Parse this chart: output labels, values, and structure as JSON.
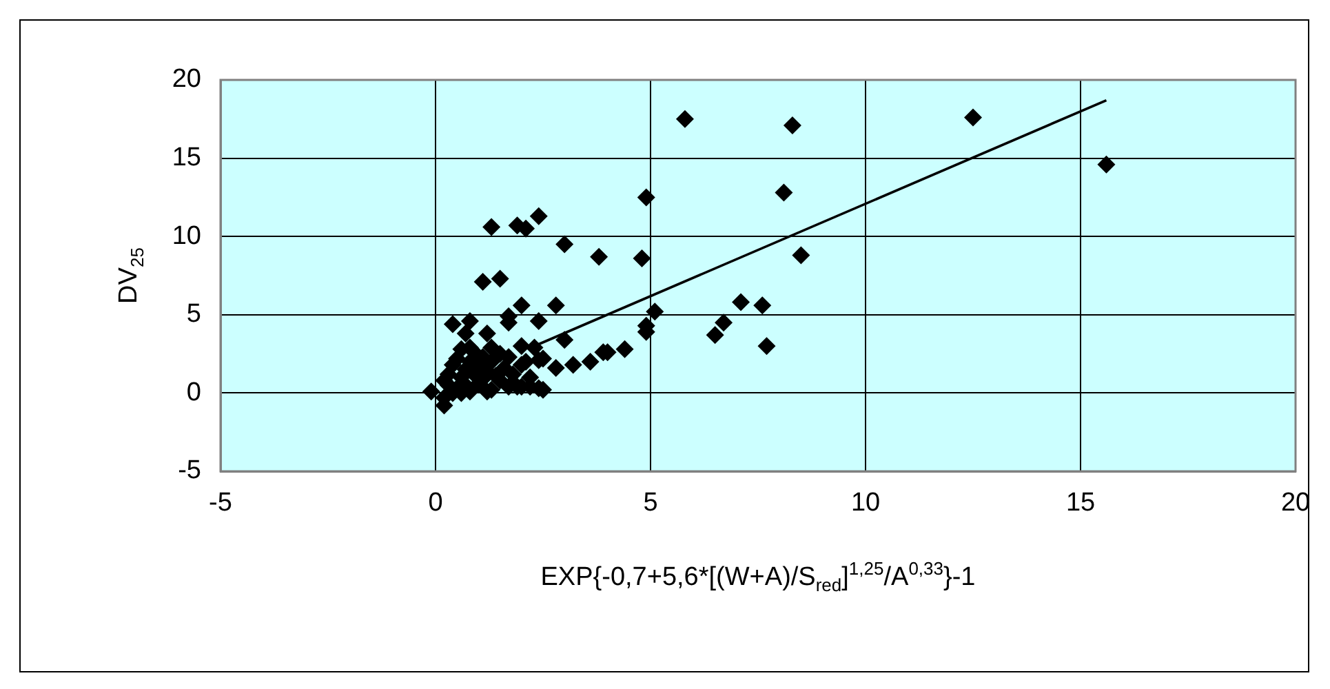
{
  "chart_data": {
    "type": "scatter",
    "xlabel": "EXP{-0,7+5,6*[(W+A)/S$_{red}$]$^{1,25}$/A$^{0,33}$}-1",
    "ylabel": "DV$_{25}$",
    "xlim": [
      -5,
      20
    ],
    "xticks": [
      -5,
      0,
      5,
      10,
      15,
      20
    ],
    "ylim": [
      -5,
      20
    ],
    "yticks": [
      -5,
      0,
      5,
      10,
      15,
      20
    ],
    "grid": true,
    "legend": false,
    "marker": "diamond",
    "series": [
      {
        "color": "#000000",
        "x": [
          5.8,
          8.3,
          12.5,
          15.6,
          4.9,
          8.1,
          4.8,
          8.5,
          5.1,
          4.9,
          4.9,
          6.7,
          6.5,
          7.1,
          7.6,
          7.7,
          4.4,
          4.0,
          1.3,
          1.9,
          2.1,
          2.4,
          3.0,
          3.8,
          1.1,
          1.5,
          2.0,
          2.8,
          0.4,
          0.8,
          1.7,
          1.7,
          2.4,
          1.2,
          3.0,
          3.9,
          2.8,
          3.2,
          3.6,
          2.5,
          2.1,
          2.2,
          2.5,
          1.7,
          -0.1,
          0.2,
          0.7,
          0.8,
          1.3,
          2.0,
          2.3,
          0.2,
          0.3,
          0.3,
          0.4,
          0.5,
          0.5,
          0.6,
          0.6,
          0.7,
          0.7,
          0.8,
          0.8,
          0.9,
          0.9,
          1.0,
          1.0,
          1.1,
          1.1,
          1.2,
          1.3,
          1.3,
          1.4,
          1.5,
          1.5,
          1.6,
          1.7,
          1.8,
          1.9,
          2.0,
          2.2,
          2.4,
          1.2,
          0.4,
          0.2,
          0.6,
          2.0,
          2.4
        ],
        "values": [
          17.5,
          17.1,
          17.6,
          14.6,
          12.5,
          12.8,
          8.6,
          8.8,
          5.2,
          4.3,
          3.9,
          4.5,
          3.7,
          5.8,
          5.6,
          3.0,
          2.8,
          2.6,
          10.6,
          10.7,
          10.5,
          11.3,
          9.5,
          8.7,
          7.1,
          7.3,
          5.6,
          5.6,
          4.4,
          4.6,
          4.9,
          4.5,
          4.6,
          3.8,
          3.4,
          2.6,
          1.6,
          1.8,
          2.0,
          2.2,
          2.0,
          0.4,
          0.2,
          0.4,
          0.1,
          -0.8,
          3.8,
          2.9,
          2.9,
          3.0,
          2.9,
          -0.3,
          0.5,
          1.2,
          1.8,
          0.3,
          2.2,
          1.0,
          2.8,
          0.5,
          1.5,
          2.0,
          0.1,
          1.2,
          2.6,
          0.6,
          1.8,
          2.3,
          0.9,
          1.4,
          2.0,
          0.2,
          1.1,
          2.5,
          0.8,
          1.6,
          2.3,
          1.2,
          0.4,
          1.8,
          1.0,
          2.1,
          0.1,
          0.0,
          0.8,
          0.0,
          0.4,
          0.3
        ]
      },
      {
        "type": "line",
        "marker": "none",
        "color": "#000000",
        "x": [
          2.3,
          15.6
        ],
        "values": [
          3.0,
          18.7
        ]
      }
    ]
  }
}
